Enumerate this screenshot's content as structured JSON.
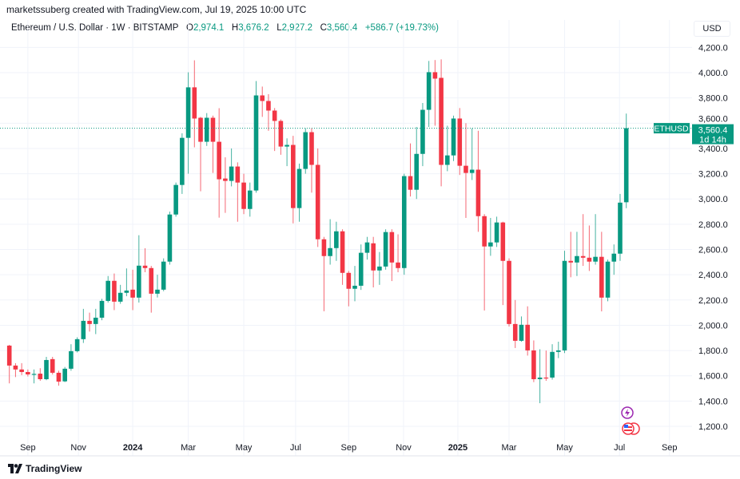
{
  "credit": "marketssuberg created with TradingView.com, Jul 19, 2025 10:00 UTC",
  "legend": {
    "symbol": "Ethereum / U.S. Dollar · 1W · BITSTAMP",
    "o_label": "O",
    "o": "2,974.1",
    "h_label": "H",
    "h": "3,676.2",
    "l_label": "L",
    "l": "2,927.2",
    "c_label": "C",
    "c": "3,560.4",
    "change": "+586.7 (+19.73%)"
  },
  "currency": "USD",
  "last_price": {
    "ticker": "ETHUSD",
    "price": "3,560.4",
    "countdown": "1d 14h",
    "value": 3560.4
  },
  "branding": "TradingView",
  "colors": {
    "up": "#089981",
    "down": "#f23645",
    "grid": "#f0f3fa"
  },
  "icons": [
    "lightning-event-icon",
    "us-flag-economic-event-icon"
  ],
  "chart_data": {
    "type": "candlestick",
    "interval": "1W",
    "ylim": [
      1100,
      4300
    ],
    "y_ticks": [
      "1,200.0",
      "1,400.0",
      "1,600.0",
      "1,800.0",
      "2,000.0",
      "2,200.0",
      "2,400.0",
      "2,600.0",
      "2,800.0",
      "3,000.0",
      "3,200.0",
      "3,400.0",
      "3,600.0",
      "3,800.0",
      "4,000.0",
      "4,200.0"
    ],
    "y_tick_values": [
      1200,
      1400,
      1600,
      1800,
      2000,
      2200,
      2400,
      2600,
      2800,
      3000,
      3200,
      3400,
      3600,
      3800,
      4000,
      4200
    ],
    "x_ticks": [
      {
        "label": "Sep",
        "bold": false
      },
      {
        "label": "Nov",
        "bold": false
      },
      {
        "label": "2024",
        "bold": true
      },
      {
        "label": "Mar",
        "bold": false
      },
      {
        "label": "May",
        "bold": false
      },
      {
        "label": "Jul",
        "bold": false
      },
      {
        "label": "Sep",
        "bold": false
      },
      {
        "label": "Nov",
        "bold": false
      },
      {
        "label": "2025",
        "bold": true
      },
      {
        "label": "Mar",
        "bold": false
      },
      {
        "label": "May",
        "bold": false
      },
      {
        "label": "Jul",
        "bold": false
      },
      {
        "label": "Sep",
        "bold": false
      }
    ],
    "grid": true,
    "candles": [
      [
        1839,
        1845,
        1540,
        1681
      ],
      [
        1681,
        1700,
        1590,
        1650
      ],
      [
        1650,
        1700,
        1605,
        1630
      ],
      [
        1630,
        1650,
        1595,
        1611
      ],
      [
        1611,
        1650,
        1540,
        1615
      ],
      [
        1617,
        1660,
        1560,
        1573
      ],
      [
        1573,
        1750,
        1565,
        1725
      ],
      [
        1732,
        1750,
        1610,
        1624
      ],
      [
        1624,
        1640,
        1522,
        1554
      ],
      [
        1556,
        1670,
        1550,
        1656
      ],
      [
        1656,
        1850,
        1640,
        1795
      ],
      [
        1795,
        1905,
        1785,
        1890
      ],
      [
        1890,
        2130,
        1860,
        2035
      ],
      [
        2035,
        2100,
        1950,
        2010
      ],
      [
        2010,
        2130,
        1930,
        2060
      ],
      [
        2060,
        2210,
        2040,
        2193
      ],
      [
        2193,
        2390,
        2180,
        2352
      ],
      [
        2352,
        2410,
        2120,
        2187
      ],
      [
        2187,
        2320,
        2170,
        2257
      ],
      [
        2257,
        2450,
        2230,
        2275
      ],
      [
        2282,
        2440,
        2120,
        2219
      ],
      [
        2219,
        2713,
        2180,
        2472
      ],
      [
        2472,
        2610,
        2420,
        2453
      ],
      [
        2453,
        2470,
        2100,
        2250
      ],
      [
        2250,
        2400,
        2220,
        2282
      ],
      [
        2282,
        2530,
        2270,
        2504
      ],
      [
        2504,
        2900,
        2480,
        2877
      ],
      [
        2877,
        3130,
        2860,
        3111
      ],
      [
        3111,
        3520,
        3040,
        3484
      ],
      [
        3484,
        4003,
        3200,
        3884
      ],
      [
        3884,
        4098,
        3409,
        3637
      ],
      [
        3643,
        3650,
        3061,
        3453
      ],
      [
        3453,
        3680,
        3420,
        3643
      ],
      [
        3643,
        3660,
        3206,
        3453
      ],
      [
        3453,
        3719,
        2852,
        3156
      ],
      [
        3162,
        3330,
        2890,
        3143
      ],
      [
        3143,
        3400,
        3100,
        3257
      ],
      [
        3257,
        3290,
        2820,
        3130
      ],
      [
        3130,
        3200,
        2880,
        2921
      ],
      [
        2921,
        3130,
        2860,
        3067
      ],
      [
        3067,
        3934,
        3050,
        3820
      ],
      [
        3820,
        3890,
        3650,
        3776
      ],
      [
        3776,
        3830,
        3540,
        3700
      ],
      [
        3700,
        3720,
        3380,
        3618
      ],
      [
        3618,
        3630,
        3350,
        3415
      ],
      [
        3415,
        3480,
        3260,
        3428
      ],
      [
        3428,
        3500,
        2807,
        2928
      ],
      [
        2928,
        3280,
        2820,
        3238
      ],
      [
        3238,
        3560,
        3200,
        3529
      ],
      [
        3529,
        3560,
        3050,
        3270
      ],
      [
        3270,
        3400,
        2620,
        2681
      ],
      [
        2681,
        2700,
        2111,
        2548
      ],
      [
        2548,
        2840,
        2480,
        2611
      ],
      [
        2611,
        2820,
        2510,
        2744
      ],
      [
        2744,
        2760,
        2320,
        2415
      ],
      [
        2415,
        2430,
        2150,
        2289
      ],
      [
        2289,
        2470,
        2190,
        2313
      ],
      [
        2313,
        2640,
        2280,
        2574
      ],
      [
        2574,
        2700,
        2520,
        2656
      ],
      [
        2649,
        2700,
        2300,
        2434
      ],
      [
        2434,
        2580,
        2320,
        2465
      ],
      [
        2465,
        2760,
        2440,
        2738
      ],
      [
        2738,
        2760,
        2350,
        2497
      ],
      [
        2497,
        2720,
        2420,
        2453
      ],
      [
        2453,
        3200,
        2400,
        3181
      ],
      [
        3181,
        3440,
        3020,
        3073
      ],
      [
        3073,
        3570,
        3000,
        3357
      ],
      [
        3357,
        3760,
        3260,
        3706
      ],
      [
        3706,
        4093,
        3570,
        4004
      ],
      [
        4004,
        4100,
        3580,
        3953
      ],
      [
        3959,
        4105,
        3100,
        3270
      ],
      [
        3270,
        3580,
        3220,
        3345
      ],
      [
        3345,
        3660,
        3300,
        3637
      ],
      [
        3637,
        3720,
        3190,
        3263
      ],
      [
        3263,
        3600,
        2850,
        3206
      ],
      [
        3206,
        3560,
        3150,
        3232
      ],
      [
        3232,
        3540,
        2740,
        2864
      ],
      [
        2864,
        2880,
        2117,
        2624
      ],
      [
        2624,
        2850,
        2550,
        2656
      ],
      [
        2656,
        2860,
        2620,
        2814
      ],
      [
        2814,
        2820,
        2160,
        2510
      ],
      [
        2510,
        2530,
        1990,
        2010
      ],
      [
        2010,
        2200,
        1820,
        1877
      ],
      [
        1877,
        2070,
        1870,
        2004
      ],
      [
        2004,
        2150,
        1760,
        1801
      ],
      [
        1801,
        1880,
        1550,
        1573
      ],
      [
        1573,
        1810,
        1383,
        1586
      ],
      [
        1586,
        1800,
        1560,
        1580
      ],
      [
        1586,
        1850,
        1570,
        1789
      ],
      [
        1789,
        1870,
        1740,
        1801
      ],
      [
        1801,
        2590,
        1780,
        2510
      ],
      [
        2510,
        2740,
        2380,
        2497
      ],
      [
        2497,
        2740,
        2390,
        2548
      ],
      [
        2548,
        2880,
        2470,
        2535
      ],
      [
        2535,
        2790,
        2430,
        2504
      ],
      [
        2504,
        2880,
        2480,
        2542
      ],
      [
        2542,
        2740,
        2110,
        2219
      ],
      [
        2219,
        2520,
        2190,
        2504
      ],
      [
        2504,
        2640,
        2400,
        2567
      ],
      [
        2567,
        3040,
        2510,
        2971
      ],
      [
        2974.1,
        3676.2,
        2927.2,
        3560.4
      ]
    ],
    "candle_fields": [
      "open",
      "high",
      "low",
      "close"
    ]
  }
}
